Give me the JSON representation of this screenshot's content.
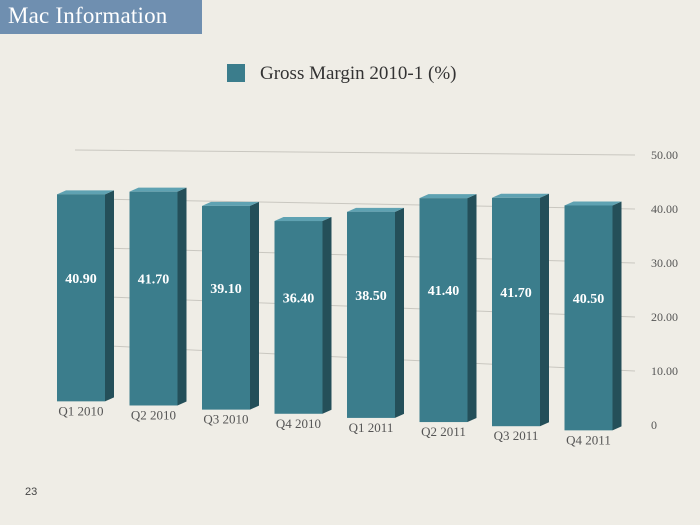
{
  "slide": {
    "title": "Mac Information",
    "page_number": "23"
  },
  "colors": {
    "bar": "#3b7d8c",
    "banner": "#6f8fb0",
    "background": "#efede6"
  },
  "chart_data": {
    "type": "bar",
    "title": "",
    "categories": [
      "Q1 2010",
      "Q2 2010",
      "Q3 2010",
      "Q4 2010",
      "Q1 2011",
      "Q2 2011",
      "Q3 2011",
      "Q4 2011"
    ],
    "series": [
      {
        "name": "Gross Margin 2010-1 (%)",
        "values": [
          40.9,
          41.7,
          39.1,
          36.4,
          38.5,
          41.4,
          41.7,
          40.5
        ],
        "labels": [
          "40.90",
          "41.70",
          "39.10",
          "36.40",
          "38.50",
          "41.40",
          "41.70",
          "40.50"
        ]
      }
    ],
    "ylim": [
      0,
      50
    ],
    "y_ticks": [
      "0",
      "10.00",
      "20.00",
      "30.00",
      "40.00",
      "50.00"
    ],
    "y_axis_position": "right",
    "legend_position": "top",
    "grid": true,
    "xlabel": "",
    "ylabel": ""
  }
}
